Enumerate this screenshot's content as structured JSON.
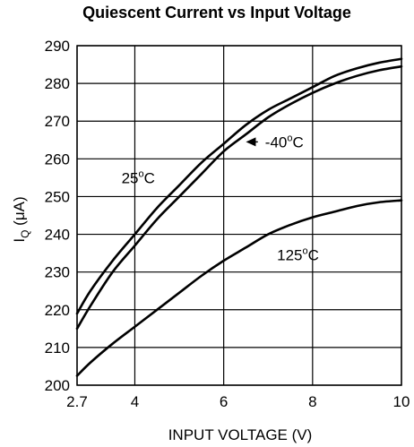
{
  "chart_data": {
    "type": "line",
    "title": "Quiescent Current vs Input Voltage",
    "xlabel": "INPUT VOLTAGE (V)",
    "ylabel": {
      "main": "I",
      "sub": "Q",
      "rest": " (μA)"
    },
    "xlim": [
      2.7,
      10
    ],
    "ylim": [
      200,
      290
    ],
    "xticks": [
      2.7,
      4,
      6,
      8,
      10
    ],
    "xtick_labels": [
      "2.7",
      "4",
      "6",
      "8",
      "10"
    ],
    "yticks": [
      200,
      210,
      220,
      230,
      240,
      250,
      260,
      270,
      280,
      290
    ],
    "ytick_labels": [
      "200",
      "210",
      "220",
      "230",
      "240",
      "250",
      "260",
      "270",
      "280",
      "290"
    ],
    "grid": true,
    "series": [
      {
        "name": "25°C",
        "x": [
          2.7,
          3.0,
          3.5,
          4.0,
          4.5,
          5.0,
          5.5,
          6.0,
          6.5,
          7.0,
          7.5,
          8.0,
          8.5,
          9.0,
          9.5,
          10.0
        ],
        "y": [
          219,
          225,
          233,
          240,
          247,
          253,
          259,
          264,
          269,
          273,
          276,
          279,
          282,
          284,
          285.5,
          286.5
        ]
      },
      {
        "name": "-40°C",
        "x": [
          2.7,
          3.0,
          3.5,
          4.0,
          4.5,
          5.0,
          5.5,
          6.0,
          6.5,
          7.0,
          7.5,
          8.0,
          8.5,
          9.0,
          9.5,
          10.0
        ],
        "y": [
          215,
          221,
          230,
          237,
          244,
          250,
          256,
          262,
          266.5,
          271,
          274.5,
          277.5,
          280,
          282,
          283.5,
          284.5
        ]
      },
      {
        "name": "125°C",
        "x": [
          2.7,
          3.0,
          3.5,
          4.0,
          4.5,
          5.0,
          5.5,
          6.0,
          6.5,
          7.0,
          7.5,
          8.0,
          8.5,
          9.0,
          9.5,
          10.0
        ],
        "y": [
          202.5,
          206,
          211,
          215.5,
          220,
          224.5,
          229,
          233,
          236.5,
          240,
          242.5,
          244.5,
          246,
          247.5,
          248.5,
          249
        ]
      }
    ],
    "annotations": [
      {
        "series": "25°C",
        "base": "25",
        "deg": "o",
        "unit": "C",
        "x": 3.7,
        "y": 255
      },
      {
        "series": "-40°C",
        "base": "-40",
        "deg": "o",
        "unit": "C",
        "x": 6.85,
        "y": 264.5,
        "arrow_to": [
          6.5,
          264.5
        ]
      },
      {
        "series": "125°C",
        "base": "125",
        "deg": "o",
        "unit": "C",
        "x": 7.2,
        "y": 234.5
      }
    ],
    "line_color": "#000000"
  }
}
